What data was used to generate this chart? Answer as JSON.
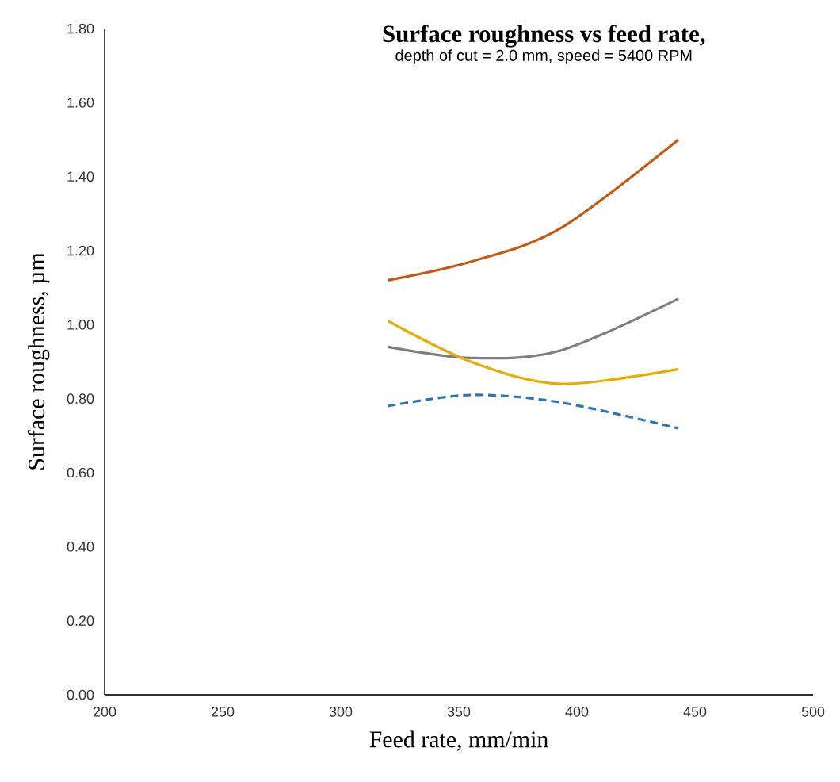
{
  "chart_data": {
    "type": "line",
    "title": "Surface roughness vs feed rate,",
    "subtitle": "depth of cut = 2.0 mm, speed = 5400 RPM",
    "xlabel": "Feed rate, mm/min",
    "ylabel": "Surface roughness, µm",
    "x": [
      320,
      355,
      393,
      443
    ],
    "series": [
      {
        "color": "#c55a11",
        "line_style": "solid",
        "values": [
          1.12,
          1.17,
          1.26,
          1.5
        ]
      },
      {
        "color": "#7f7f7f",
        "line_style": "solid",
        "values": [
          0.94,
          0.91,
          0.93,
          1.07
        ]
      },
      {
        "color": "#e6ac00",
        "line_style": "solid",
        "values": [
          1.01,
          0.9,
          0.84,
          0.88
        ]
      },
      {
        "color": "#2e75b6",
        "line_style": "dashed",
        "values": [
          0.78,
          0.81,
          0.79,
          0.72
        ]
      }
    ],
    "xlim": [
      200,
      500
    ],
    "xticks": [
      200,
      250,
      300,
      350,
      400,
      450,
      500
    ],
    "ylim": [
      0,
      1.8
    ],
    "yticks": [
      {
        "value": 0,
        "label": "0.00"
      },
      {
        "value": 0.2,
        "label": "0.20"
      },
      {
        "value": 0.4,
        "label": "0.40"
      },
      {
        "value": 0.6,
        "label": "0.60"
      },
      {
        "value": 0.8,
        "label": "0.80"
      },
      {
        "value": 1.0,
        "label": "1.00"
      },
      {
        "value": 1.2,
        "label": "1.20"
      },
      {
        "value": 1.4,
        "label": "1.40"
      },
      {
        "value": 1.6,
        "label": "1.60"
      },
      {
        "value": 1.8,
        "label": "1.80"
      }
    ],
    "grid": false,
    "marker": "none"
  }
}
